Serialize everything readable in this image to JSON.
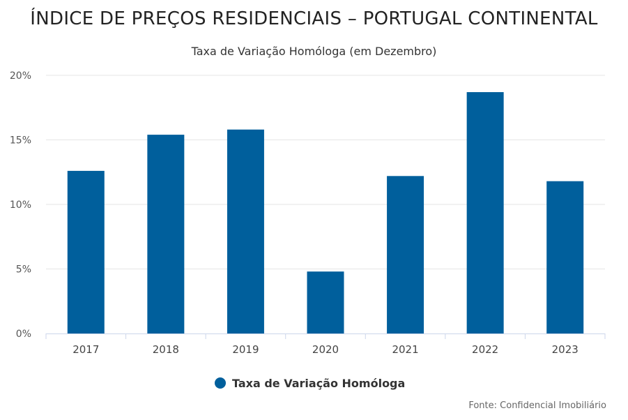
{
  "chart_data": {
    "type": "bar",
    "title": "ÍNDICE DE PREÇOS RESIDENCIAIS – PORTUGAL CONTINENTAL",
    "subtitle": "Taxa de Variação Homóloga (em Dezembro)",
    "categories": [
      "2017",
      "2018",
      "2019",
      "2020",
      "2021",
      "2022",
      "2023"
    ],
    "series": [
      {
        "name": "Taxa de Variação Homóloga",
        "values": [
          12.6,
          15.4,
          15.8,
          4.8,
          12.2,
          18.7,
          11.8
        ]
      }
    ],
    "ylim": [
      0,
      20
    ],
    "yticks": [
      0,
      5,
      10,
      15,
      20
    ],
    "ytick_labels": [
      "0%",
      "5%",
      "10%",
      "15%",
      "20%"
    ],
    "grid": true,
    "legend_position": "bottom",
    "bar_color": "#005f9c",
    "source": "Fonte: Confidencial Imobiliário"
  }
}
